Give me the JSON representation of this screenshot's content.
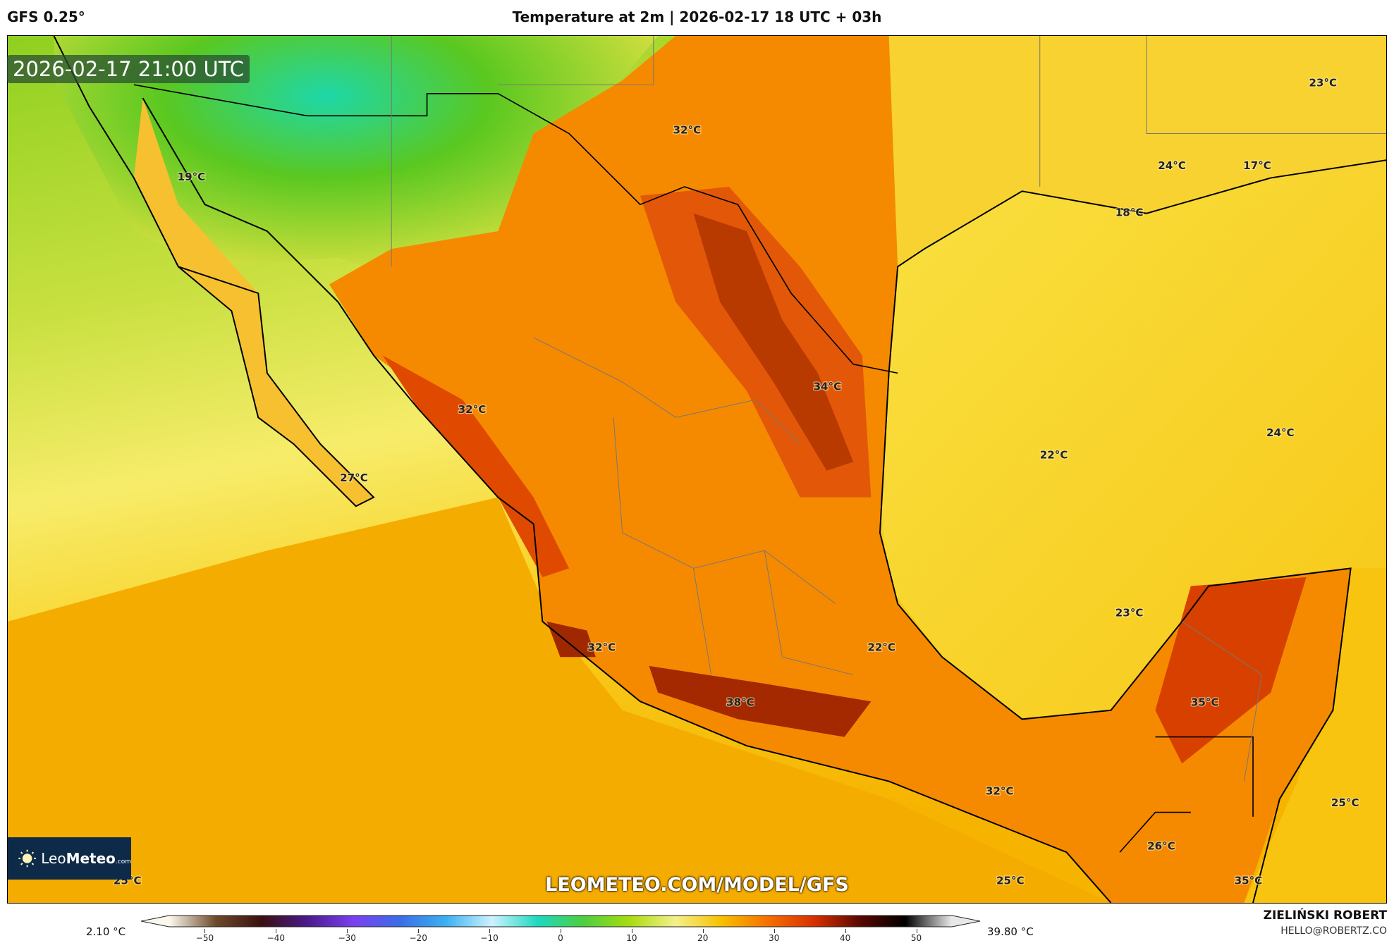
{
  "header": {
    "model": "GFS 0.25°",
    "title": "Temperature at 2m | 2026-02-17 18 UTC + 03h"
  },
  "map": {
    "valid_time": "2026-02-17 21:00 UTC",
    "watermark": "LEOMETEO.COM/MODEL/GFS",
    "logo": {
      "name_light": "Leo",
      "name_bold": "Meteo",
      "suffix": ".com"
    },
    "colors": {
      "green": "#7cc520",
      "yellow": "#f7dc3a",
      "gold": "#f5b700",
      "orange": "#f58a00",
      "red": "#dc4a00",
      "dark_red": "#9c2a00"
    },
    "temperature_labels": [
      "23°C",
      "32°C",
      "19°C",
      "24°C",
      "17°C",
      "18°C",
      "34°C",
      "32°C",
      "24°C",
      "22°C",
      "27°C",
      "23°C",
      "32°C",
      "22°C",
      "38°C",
      "35°C",
      "32°C",
      "25°C",
      "26°C",
      "25°C",
      "25°C",
      "35°C"
    ]
  },
  "colorbar": {
    "min_value": "2.10 °C",
    "max_value": "39.80 °C",
    "ticks": [
      "−50",
      "−40",
      "−30",
      "−20",
      "−10",
      "0",
      "10",
      "20",
      "30",
      "40",
      "50"
    ],
    "range": [
      -55,
      55
    ],
    "stops": [
      "#fbf8ee",
      "#6e4a2a",
      "#3a1010",
      "#4a1a8a",
      "#7b3ff0",
      "#3a6ee6",
      "#3ab0f0",
      "#cdf2ff",
      "#1ed8c0",
      "#4ccf40",
      "#a8dc10",
      "#f4f08a",
      "#f8c000",
      "#f57000",
      "#d83000",
      "#5a0800",
      "#000000",
      "#e8e8e8"
    ]
  },
  "credits": {
    "author": "ZIELIŃSKI ROBERT",
    "email": "HELLO@ROBERTZ.CO"
  }
}
